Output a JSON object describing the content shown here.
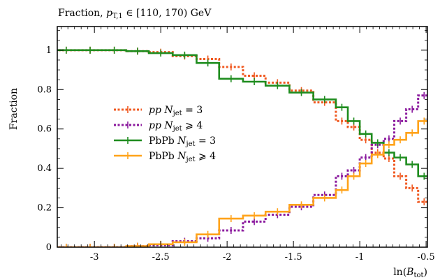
{
  "chart_data": {
    "type": "line",
    "title": "Fraction, p_T,1 ∈ [110, 170) GeV",
    "title_parts": {
      "prefix": "Fraction, ",
      "var": "p",
      "sub": "T,1",
      "suffix": " ∈ [110, 170) GeV"
    },
    "xlabel": "ln(B_tot)",
    "xlabel_parts": {
      "prefix": "ln(",
      "var": "B",
      "sub": "tot",
      "suffix": ")"
    },
    "ylabel": "Fraction",
    "xlim": [
      -3.28,
      -0.49
    ],
    "ylim": [
      0,
      1.12
    ],
    "xticks": [
      -3,
      -2.5,
      -2,
      -1.5,
      -1,
      -0.5
    ],
    "xtick_labels": [
      "-3",
      "-2.5",
      "-2",
      "-1.5",
      "-1",
      "-0.5"
    ],
    "yticks": [
      0,
      0.2,
      0.4,
      0.6,
      0.8,
      1
    ],
    "ytick_labels": [
      "0",
      "0.2",
      "0.4",
      "0.6",
      "0.8",
      "1"
    ],
    "legend_position": "center-left",
    "grid": false,
    "bin_edges": [
      -3.3,
      -3.125,
      -2.94,
      -2.76,
      -2.59,
      -2.41,
      -2.23,
      -2.06,
      -1.88,
      -1.71,
      -1.53,
      -1.35,
      -1.18,
      -1.09,
      -1.0,
      -0.91,
      -0.82,
      -0.74,
      -0.65,
      -0.56,
      -0.47
    ],
    "series": [
      {
        "name": "pp N_jet = 3",
        "legend": {
          "var": "pp",
          "n": "N",
          "sub": "jet",
          "rel": " = 3"
        },
        "color": "#f05a22",
        "style": "dotted",
        "values": [
          1.0,
          1.0,
          1.0,
          0.995,
          0.99,
          0.97,
          0.955,
          0.915,
          0.87,
          0.835,
          0.795,
          0.735,
          0.64,
          0.61,
          0.545,
          0.48,
          0.45,
          0.36,
          0.3,
          0.23,
          0.185
        ]
      },
      {
        "name": "pp N_jet ≥ 4",
        "legend": {
          "var": "pp",
          "n": "N",
          "sub": "jet",
          "rel": " ⩾ 4"
        },
        "color": "#8b1a9e",
        "style": "dotted",
        "values": [
          0.0,
          0.0,
          0.0,
          0.005,
          0.01,
          0.03,
          0.045,
          0.085,
          0.13,
          0.165,
          0.205,
          0.265,
          0.36,
          0.39,
          0.455,
          0.52,
          0.55,
          0.64,
          0.7,
          0.77,
          0.815
        ]
      },
      {
        "name": "PbPb N_jet = 3",
        "legend": {
          "var": "PbPb",
          "n": "N",
          "sub": "jet",
          "rel": " = 3"
        },
        "color": "#1e8c1e",
        "style": "solid",
        "values": [
          1.0,
          1.0,
          1.0,
          0.995,
          0.985,
          0.975,
          0.935,
          0.855,
          0.84,
          0.82,
          0.785,
          0.75,
          0.71,
          0.64,
          0.575,
          0.53,
          0.48,
          0.455,
          0.42,
          0.36,
          0.305
        ]
      },
      {
        "name": "PbPb N_jet ≥ 4",
        "legend": {
          "var": "PbPb",
          "n": "N",
          "sub": "jet",
          "rel": " ⩾ 4"
        },
        "color": "#ffa31a",
        "style": "solid",
        "values": [
          0.0,
          0.0,
          0.0,
          0.005,
          0.015,
          0.025,
          0.065,
          0.145,
          0.16,
          0.18,
          0.215,
          0.25,
          0.29,
          0.36,
          0.425,
          0.47,
          0.52,
          0.545,
          0.58,
          0.64,
          0.695
        ]
      }
    ]
  }
}
